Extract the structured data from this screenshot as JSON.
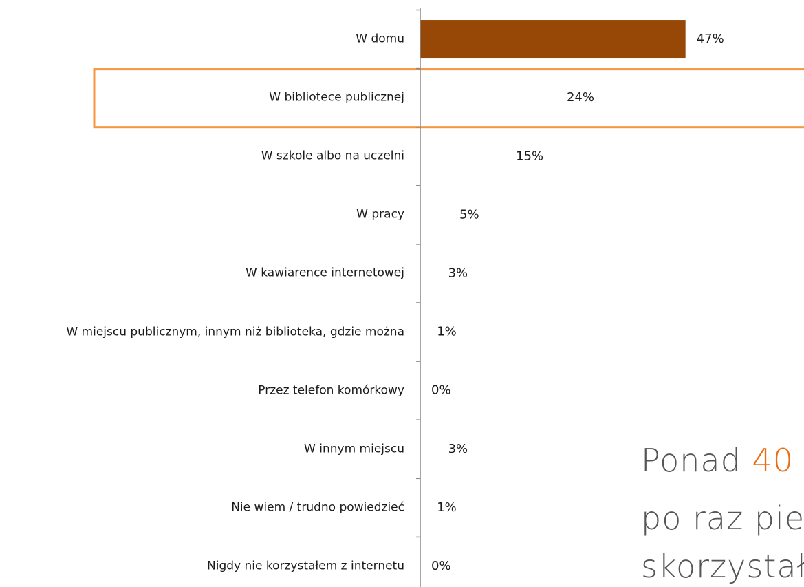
{
  "chart_data": {
    "type": "hbar",
    "categories": [
      "W domu",
      "W bibliotece publicznej",
      "W szkole albo na uczelni",
      "W pracy",
      "W kawiarence internetowej",
      "W miejscu publicznym, innym niż biblioteka, gdzie można",
      "Przez telefon komórkowy",
      "W innym miejscu",
      "Nie wiem / trudno powiedzieć",
      "Nigdy nie korzystałem z internetu"
    ],
    "values": [
      47,
      24,
      15,
      5,
      3,
      1,
      0,
      3,
      1,
      0
    ],
    "value_labels": [
      "47%",
      "24%",
      "15%",
      "5%",
      "3%",
      "1%",
      "0%",
      "3%",
      "1%",
      "0%"
    ],
    "colors": [
      "#974706",
      "#ffffff",
      "#ffffff",
      "#ffffff",
      "#ffffff",
      "#ffffff",
      "#ffffff",
      "#ffffff",
      "#ffffff",
      "#ffffff"
    ],
    "xlim": [
      0,
      68
    ],
    "highlight": 1,
    "annotation": {
      "line1a": "Ponad",
      "line1b": "40",
      "line2": "po raz pier",
      "line3": "skorzystał"
    }
  }
}
